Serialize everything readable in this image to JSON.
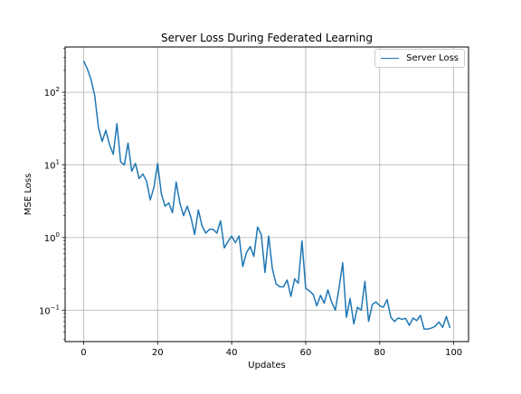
{
  "chart_data": {
    "type": "line",
    "title": "Server Loss During Federated Learning",
    "xlabel": "Updates",
    "ylabel": "MSE Loss",
    "xlim": [
      -5,
      104
    ],
    "ylim": [
      0.037,
      420
    ],
    "yscale": "log",
    "grid": true,
    "legend_position": "top-right",
    "x_ticks": [
      {
        "value": 0,
        "label": "0"
      },
      {
        "value": 20,
        "label": "20"
      },
      {
        "value": 40,
        "label": "40"
      },
      {
        "value": 60,
        "label": "60"
      },
      {
        "value": 80,
        "label": "80"
      },
      {
        "value": 100,
        "label": "100"
      }
    ],
    "y_ticks": [
      {
        "value": 0.1,
        "base": "10",
        "exp": "−1"
      },
      {
        "value": 1,
        "base": "10",
        "exp": "0"
      },
      {
        "value": 10,
        "base": "10",
        "exp": "1"
      },
      {
        "value": 100,
        "base": "10",
        "exp": "2"
      }
    ],
    "series": [
      {
        "name": "Server Loss",
        "color": "#1f77b4",
        "x": [
          0,
          1,
          2,
          3,
          4,
          5,
          6,
          7,
          8,
          9,
          10,
          11,
          12,
          13,
          14,
          15,
          16,
          17,
          18,
          19,
          20,
          21,
          22,
          23,
          24,
          25,
          26,
          27,
          28,
          29,
          30,
          31,
          32,
          33,
          34,
          35,
          36,
          37,
          38,
          39,
          40,
          41,
          42,
          43,
          44,
          45,
          46,
          47,
          48,
          49,
          50,
          51,
          52,
          53,
          54,
          55,
          56,
          57,
          58,
          59,
          60,
          61,
          62,
          63,
          64,
          65,
          66,
          67,
          68,
          69,
          70,
          71,
          72,
          73,
          74,
          75,
          76,
          77,
          78,
          79,
          80,
          81,
          82,
          83,
          84,
          85,
          86,
          87,
          88,
          89,
          90,
          91,
          92,
          93,
          94,
          95,
          96,
          97,
          98,
          99
        ],
        "values": [
          270,
          210,
          150,
          90,
          33,
          21,
          30,
          19,
          14,
          37,
          11,
          10,
          20,
          8.2,
          10.5,
          6.5,
          7.5,
          6,
          3.3,
          4.9,
          10.5,
          4,
          2.7,
          3,
          2.2,
          5.8,
          3,
          2,
          2.7,
          1.9,
          1.1,
          2.4,
          1.45,
          1.15,
          1.3,
          1.3,
          1.15,
          1.7,
          0.72,
          0.88,
          1.05,
          0.85,
          1.05,
          0.4,
          0.62,
          0.75,
          0.55,
          1.4,
          1.1,
          0.33,
          1.05,
          0.37,
          0.23,
          0.21,
          0.21,
          0.26,
          0.155,
          0.27,
          0.235,
          0.9,
          0.2,
          0.185,
          0.165,
          0.115,
          0.16,
          0.125,
          0.19,
          0.13,
          0.1,
          0.2,
          0.45,
          0.08,
          0.145,
          0.065,
          0.11,
          0.1,
          0.25,
          0.07,
          0.12,
          0.13,
          0.115,
          0.11,
          0.14,
          0.08,
          0.07,
          0.078,
          0.075,
          0.077,
          0.062,
          0.078,
          0.072,
          0.085,
          0.055,
          0.055,
          0.057,
          0.06,
          0.069,
          0.058,
          0.082,
          0.057
        ]
      }
    ]
  }
}
